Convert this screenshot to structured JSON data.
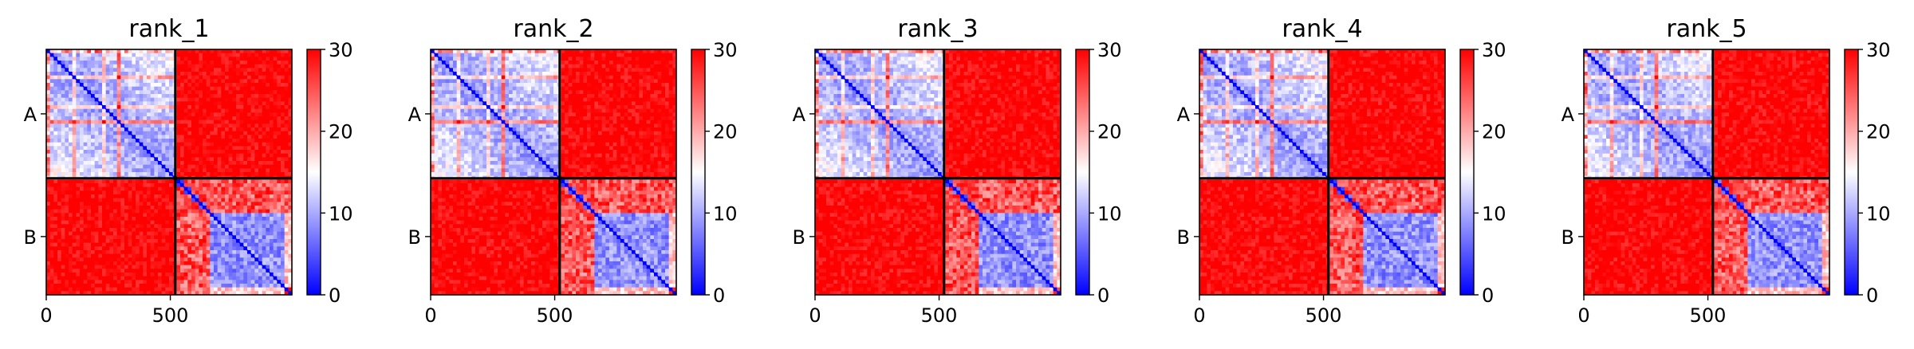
{
  "chart_data": [
    {
      "type": "heatmap",
      "title": "rank_1",
      "xlabel": "",
      "ylabel": "",
      "x_ticks": [
        "0",
        "500"
      ],
      "y_ticks": [
        "A",
        "B"
      ],
      "chain_boundary": 520,
      "n_residues": 990,
      "colorbar": {
        "ticks": [
          "0",
          "10",
          "20",
          "30"
        ],
        "range": [
          0,
          30
        ],
        "colormap": "bwr"
      },
      "colors": {
        "low": "#0000ff",
        "mid": "#ffffff",
        "high": "#ff0000"
      },
      "block_mean_error": {
        "A-A": 9,
        "A-B": 29,
        "B-A": 29,
        "B-B": 9
      }
    },
    {
      "type": "heatmap",
      "title": "rank_2",
      "xlabel": "",
      "ylabel": "",
      "x_ticks": [
        "0",
        "500"
      ],
      "y_ticks": [
        "A",
        "B"
      ],
      "chain_boundary": 520,
      "n_residues": 990,
      "colorbar": {
        "ticks": [
          "0",
          "10",
          "20",
          "30"
        ],
        "range": [
          0,
          30
        ],
        "colormap": "bwr"
      },
      "colors": {
        "low": "#0000ff",
        "mid": "#ffffff",
        "high": "#ff0000"
      },
      "block_mean_error": {
        "A-A": 9,
        "A-B": 29,
        "B-A": 29,
        "B-B": 9
      }
    },
    {
      "type": "heatmap",
      "title": "rank_3",
      "xlabel": "",
      "ylabel": "",
      "x_ticks": [
        "0",
        "500"
      ],
      "y_ticks": [
        "A",
        "B"
      ],
      "chain_boundary": 520,
      "n_residues": 990,
      "colorbar": {
        "ticks": [
          "0",
          "10",
          "20",
          "30"
        ],
        "range": [
          0,
          30
        ],
        "colormap": "bwr"
      },
      "colors": {
        "low": "#0000ff",
        "mid": "#ffffff",
        "high": "#ff0000"
      },
      "block_mean_error": {
        "A-A": 9,
        "A-B": 29,
        "B-A": 29,
        "B-B": 9
      }
    },
    {
      "type": "heatmap",
      "title": "rank_4",
      "xlabel": "",
      "ylabel": "",
      "x_ticks": [
        "0",
        "500"
      ],
      "y_ticks": [
        "A",
        "B"
      ],
      "chain_boundary": 520,
      "n_residues": 990,
      "colorbar": {
        "ticks": [
          "0",
          "10",
          "20",
          "30"
        ],
        "range": [
          0,
          30
        ],
        "colormap": "bwr"
      },
      "colors": {
        "low": "#0000ff",
        "mid": "#ffffff",
        "high": "#ff0000"
      },
      "block_mean_error": {
        "A-A": 9,
        "A-B": 29,
        "B-A": 29,
        "B-B": 9
      }
    },
    {
      "type": "heatmap",
      "title": "rank_5",
      "xlabel": "",
      "ylabel": "",
      "x_ticks": [
        "0",
        "500"
      ],
      "y_ticks": [
        "A",
        "B"
      ],
      "chain_boundary": 520,
      "n_residues": 990,
      "colorbar": {
        "ticks": [
          "0",
          "10",
          "20",
          "30"
        ],
        "range": [
          0,
          30
        ],
        "colormap": "bwr"
      },
      "colors": {
        "low": "#0000ff",
        "mid": "#ffffff",
        "high": "#ff0000"
      },
      "block_mean_error": {
        "A-A": 9,
        "A-B": 29,
        "B-A": 29,
        "B-B": 9
      }
    }
  ]
}
